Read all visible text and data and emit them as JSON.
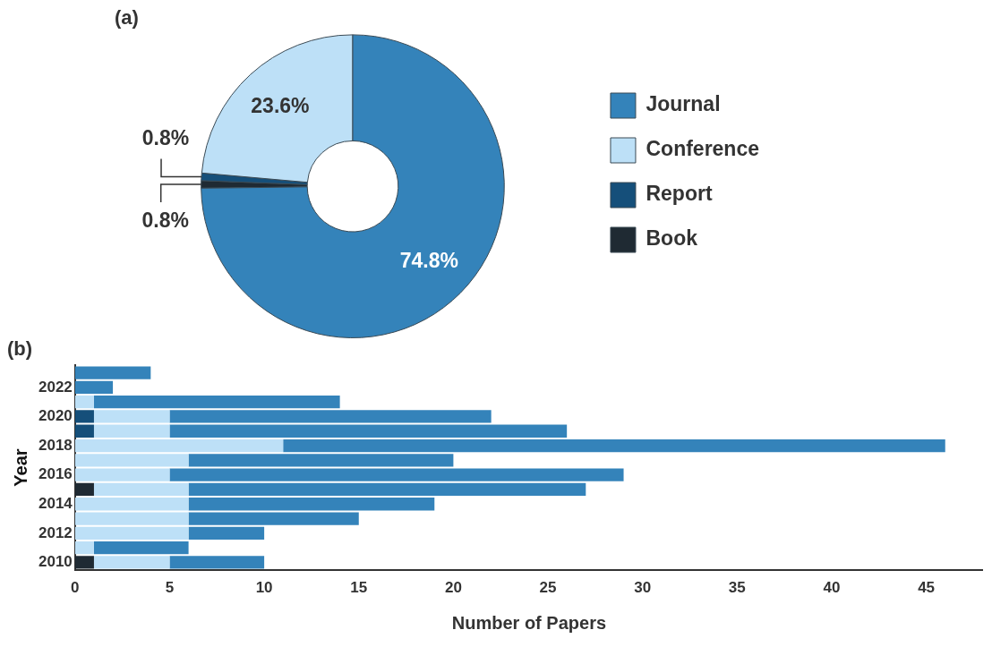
{
  "chart_data": [
    {
      "type": "donut",
      "title": "(a)",
      "categories": [
        "Journal",
        "Conference",
        "Report",
        "Book"
      ],
      "values": [
        74.8,
        23.6,
        0.8,
        0.8
      ],
      "colors": [
        "#3483ba",
        "#bde0f7",
        "#154f7a",
        "#1f2a33"
      ],
      "value_labels": [
        "74.8%",
        "23.6%",
        "0.8%",
        "0.8%"
      ],
      "legend": "right"
    },
    {
      "type": "bar",
      "title": "(b)",
      "orientation": "horizontal",
      "stacked": true,
      "xlabel": "Number of Papers",
      "ylabel": "Year",
      "categories": [
        null,
        "2022",
        null,
        "2020",
        null,
        "2018",
        null,
        "2016",
        null,
        "2014",
        null,
        "2012",
        null,
        "2010"
      ],
      "xlim": [
        0,
        48
      ],
      "xticks": [
        0,
        5,
        10,
        15,
        20,
        25,
        30,
        35,
        40,
        45
      ],
      "grid": false,
      "legend": false,
      "series": [
        {
          "color": "#1f2a33",
          "values": [
            0,
            0,
            0,
            0,
            0,
            0,
            0,
            0,
            1,
            0,
            0,
            0,
            0,
            1
          ]
        },
        {
          "color": "#154f7a",
          "values": [
            0,
            0,
            0,
            1,
            1,
            0,
            0,
            0,
            0,
            0,
            0,
            0,
            0,
            0
          ]
        },
        {
          "color": "#bde0f7",
          "values": [
            0,
            0,
            1,
            4,
            4,
            11,
            6,
            5,
            5,
            6,
            6,
            6,
            1,
            4
          ]
        },
        {
          "color": "#3483ba",
          "values": [
            4,
            2,
            13,
            17,
            21,
            35,
            14,
            24,
            21,
            13,
            9,
            4,
            5,
            5
          ]
        }
      ]
    }
  ]
}
